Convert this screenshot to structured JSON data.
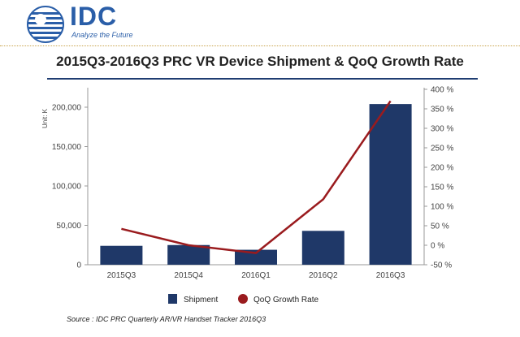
{
  "header": {
    "logo_text": "IDC",
    "tagline": "Analyze the Future",
    "brand_color": "#2a5ea8",
    "globe_icon": "globe-dots-icon"
  },
  "chart_data": {
    "type": "bar",
    "title": "2015Q3-2016Q3 PRC VR Device Shipment & QoQ Growth Rate",
    "categories": [
      "2015Q3",
      "2015Q4",
      "2016Q1",
      "2016Q2",
      "2016Q3"
    ],
    "ylabel": "Unit: K",
    "ylim": [
      0,
      200000
    ],
    "yticks": [
      "200,000",
      "150,000",
      "100,000",
      "50,000",
      "0"
    ],
    "y2lim": [
      -50,
      400
    ],
    "y2ticks": [
      "400 %",
      "350 %",
      "300 %",
      "250 %",
      "200 %",
      "150 %",
      "100 %",
      "50 %",
      "0 %",
      "-50 %"
    ],
    "series": [
      {
        "name": "Shipment",
        "type": "bar",
        "color": "#1f3868",
        "values": [
          24000,
          25000,
          19000,
          43000,
          204000
        ]
      },
      {
        "name": "QoQ Growth Rate",
        "type": "line",
        "color": "#9a1b1e",
        "values": [
          42,
          0,
          -20,
          118,
          370
        ]
      }
    ],
    "legend": "bottom",
    "grid": false
  },
  "source": "Source : IDC PRC Quarterly AR/VR Handset Tracker 2016Q3"
}
